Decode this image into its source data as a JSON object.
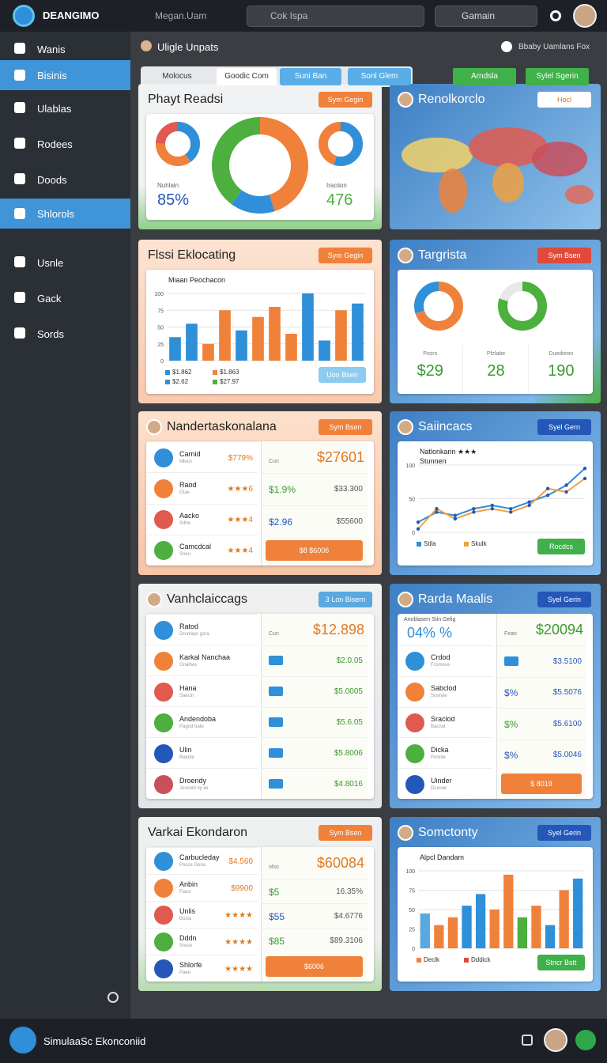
{
  "topbar": {
    "brand": "DEANGIMO",
    "user": "Megan.Uam",
    "search": "Cok Ispa",
    "search2": "Gamain"
  },
  "sidebar": {
    "items": [
      "Wanis",
      "Bisinis",
      "Ulablas",
      "Rodees",
      "Doods",
      "Shlorols",
      "Usnle",
      "Gack",
      "Sords"
    ],
    "active": [
      1,
      5
    ]
  },
  "header": {
    "title": "Uligle Unpats",
    "right": "Bbaby Uamlans Fox"
  },
  "tabs": [
    "Molocus",
    "Goodic Com",
    "Suni Ban",
    "Sonl Glem"
  ],
  "tabs_right": [
    "Arndsla",
    "Sylel Sgerin"
  ],
  "panels": [
    {
      "title": "Phayt Readsi",
      "button": "Sym Gegin",
      "button_color": "#f0813a",
      "kind": "donuts",
      "donuts": [
        {
          "values": [
            40,
            35,
            25
          ],
          "colors": [
            "#2f8fd8",
            "#f0813a",
            "#e05a4f"
          ]
        },
        {
          "values": [
            45,
            15,
            40
          ],
          "colors": [
            "#f0813a",
            "#2f8fd8",
            "#4caf3e"
          ]
        },
        {
          "values": [
            55,
            45
          ],
          "colors": [
            "#2f8fd8",
            "#f0813a"
          ]
        }
      ],
      "labels": [
        {
          "caption": "Nuhlain",
          "value": "85%"
        },
        {
          "caption": "Iraciion",
          "value": "476"
        }
      ]
    },
    {
      "title": "Renolkorclo",
      "button": "Hocl",
      "button_color": "#ffffff",
      "kind": "map",
      "avatar": true
    },
    {
      "title": "Flssi Eklocating",
      "button": "Sym Gegin",
      "button_color": "#f0813a",
      "kind": "bars",
      "action": "Uon Bsen",
      "chart": {
        "subtitle": "Miaan Peochacon",
        "values": [
          35,
          55,
          25,
          75,
          45,
          65,
          80,
          40,
          100,
          30,
          75,
          85
        ],
        "colors": [
          "#2f8fd8",
          "#2f8fd8",
          "#f0813a",
          "#f0813a",
          "#2f8fd8",
          "#f0813a",
          "#f0813a",
          "#f0813a",
          "#2f8fd8",
          "#2f8fd8",
          "#f0813a",
          "#2f8fd8"
        ],
        "ylim": [
          0,
          100
        ],
        "yticks": [
          0,
          25,
          50,
          75,
          100
        ],
        "legend": [
          {
            "name": "$1.862",
            "color": "#2f8fd8"
          },
          {
            "name": "$1.863",
            "color": "#f0813a"
          },
          {
            "name": "$2.62",
            "color": "#2f8fd8"
          },
          {
            "name": "$27.97",
            "color": "#4caf3e"
          }
        ]
      }
    },
    {
      "title": "Targrista",
      "button": "Sym Bsen",
      "button_color": "#e04a3a",
      "kind": "stats",
      "avatar": true,
      "donuts": [
        {
          "values": [
            70,
            30
          ],
          "colors": [
            "#f0813a",
            "#2f8fd8"
          ]
        },
        {
          "values": [
            80,
            20
          ],
          "colors": [
            "#4caf3e",
            "#e8e8e8"
          ]
        }
      ],
      "stats": [
        {
          "label": "Posrs",
          "value": "$29"
        },
        {
          "label": "Pfzlabe",
          "value": "28"
        },
        {
          "label": "Duedoron",
          "value": "190"
        }
      ]
    },
    {
      "title": "Nandertaskonalana",
      "button": "Sym Bsen",
      "button_color": "#f0813a",
      "kind": "list",
      "avatar": true,
      "rows": [
        {
          "name": "Carnid",
          "sub": "Mkesi",
          "value": "$779%"
        },
        {
          "name": "Raod",
          "sub": "Gtae",
          "value": "★★★6"
        },
        {
          "name": "Aacko",
          "sub": "Sdhe",
          "value": "★★★4"
        },
        {
          "name": "Camcdcal",
          "sub": "Sneo",
          "value": "★★★4"
        }
      ],
      "side": {
        "head": "Cun",
        "big": "$27601",
        "rows": [
          {
            "a": "$1.9%",
            "b": "$33.300"
          },
          {
            "a": "$2.96",
            "b": "$55600"
          }
        ],
        "button": "$8 $6006"
      }
    },
    {
      "title": "Saiincacs",
      "button": "Syel Gern",
      "button_color": "#2457b8",
      "kind": "line",
      "avatar": true,
      "action": "Rocdcs",
      "chart": {
        "subtitle": "Natlonkarin ★★★",
        "sub2": "Stunnen",
        "ylim": [
          0,
          100
        ],
        "yticks": [
          0,
          50,
          100
        ],
        "series": [
          {
            "name": "Stlla",
            "color": "#2f8fd8",
            "values": [
              15,
              30,
              25,
              35,
              40,
              35,
              45,
              55,
              70,
              95
            ]
          },
          {
            "name": "Skulk",
            "color": "#f0a040",
            "values": [
              5,
              35,
              20,
              30,
              35,
              30,
              40,
              65,
              60,
              80
            ]
          }
        ]
      }
    },
    {
      "title": "Vanhclaiccags",
      "button": "3 Lon Bisern",
      "button_color": "#5aa8e0",
      "kind": "list",
      "avatar": true,
      "rows": [
        {
          "name": "Ratod",
          "sub": "Drunlaps gora",
          "value": ""
        },
        {
          "name": "Karkal Nanchaa",
          "sub": "Gnalhes",
          "value": ""
        },
        {
          "name": "Hana",
          "sub": "Saecin",
          "value": ""
        },
        {
          "name": "Andendoba",
          "sub": "Pagrid bate",
          "value": ""
        },
        {
          "name": "Ulin",
          "sub": "Ralobe",
          "value": ""
        },
        {
          "name": "Droendy",
          "sub": "Joosoid ny ile",
          "value": ""
        }
      ],
      "side": {
        "head": "Cun",
        "big": "$12.898",
        "rows": [
          {
            "b": "$2.0.05"
          },
          {
            "b": "$5.0005"
          },
          {
            "b": "$5.6.05"
          },
          {
            "b": "$5.8006"
          },
          {
            "b": "$4.8016"
          }
        ]
      }
    },
    {
      "title": "Rarda Maalis",
      "button": "Syel Gerin",
      "button_color": "#2457b8",
      "kind": "list",
      "avatar": true,
      "top": {
        "caption": "Anoblasen Stin Gelig",
        "big": "04% %"
      },
      "rows": [
        {
          "name": "Crdod",
          "sub": "Fcsmece",
          "value": ""
        },
        {
          "name": "Sabclod",
          "sub": "Sonnde",
          "value": ""
        },
        {
          "name": "Sraclod",
          "sub": "Bacnot",
          "value": ""
        },
        {
          "name": "Dicka",
          "sub": "Ponnte",
          "value": ""
        },
        {
          "name": "Uinder",
          "sub": "Diunwe",
          "value": ""
        }
      ],
      "side": {
        "head": "Fean",
        "big": "$20094",
        "rows": [
          {
            "b": "$3.5100"
          },
          {
            "a": "$%",
            "b": "$5.5076"
          },
          {
            "a": "$%",
            "b": "$5.6100"
          },
          {
            "a": "$%",
            "b": "$5.0046"
          }
        ],
        "button": "$ 8019"
      }
    },
    {
      "title": "Varkai Ekondaron",
      "button": "Sym Bsen",
      "button_color": "#f0813a",
      "kind": "list",
      "rows": [
        {
          "name": "Carbucleday",
          "sub": "Pocce Gooa",
          "value": "$4.560"
        },
        {
          "name": "Anbin",
          "sub": "Fiaos",
          "value": "$9900"
        },
        {
          "name": "Unlis",
          "sub": "Bosia",
          "value": "★★★★"
        },
        {
          "name": "Dddn",
          "sub": "Sreoe",
          "value": "★★★★"
        },
        {
          "name": "Shlorfe",
          "sub": "Paee",
          "value": "★★★★"
        }
      ],
      "side": {
        "head": "olso",
        "big": "$60084",
        "rows": [
          {
            "a": "$5",
            "b": "16.35%"
          },
          {
            "a": "$55",
            "b": "$4.6776"
          },
          {
            "a": "$85",
            "b": "$89.3106"
          }
        ],
        "button": "$6006"
      }
    },
    {
      "title": "Somctonty",
      "button": "Syel Gerin",
      "button_color": "#2457b8",
      "kind": "bars",
      "avatar": true,
      "action": "Stncr Bstt",
      "chart": {
        "subtitle": "Alpcl Dandam",
        "values": [
          45,
          30,
          40,
          55,
          70,
          50,
          95,
          40,
          55,
          30,
          75,
          90
        ],
        "colors": [
          "#5aa8e0",
          "#f0813a",
          "#f0813a",
          "#2f8fd8",
          "#2f8fd8",
          "#f0813a",
          "#f0813a",
          "#4caf3e",
          "#f0813a",
          "#2f8fd8",
          "#f0813a",
          "#2f8fd8"
        ],
        "ylim": [
          0,
          100
        ],
        "yticks": [
          0,
          25,
          50,
          75,
          100
        ],
        "legend": [
          {
            "name": "Declk",
            "color": "#f0813a"
          },
          {
            "name": "Dddick",
            "color": "#e04a3a"
          }
        ]
      }
    }
  ],
  "footer": {
    "title": "SimulaaSc Ekonconiid"
  }
}
